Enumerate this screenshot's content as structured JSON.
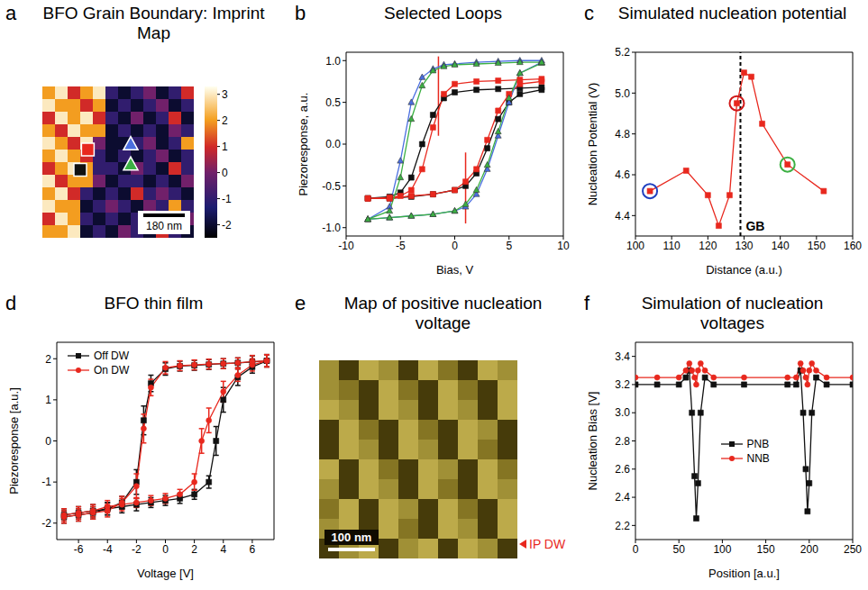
{
  "chart_data": [
    {
      "letter": "a",
      "type": "heatmap",
      "title": "BFO Grain Boundary: Imprint Map",
      "scale_bar": "180 nm",
      "colorbar": {
        "range": [
          -2.5,
          3.3
        ],
        "ticks": [
          -2,
          -1,
          0,
          1,
          2,
          3
        ]
      },
      "cells": [
        [
          2,
          3,
          1,
          2,
          3,
          -1,
          -2,
          -1,
          0,
          -2,
          -1,
          1
        ],
        [
          3,
          2,
          2,
          1,
          2,
          -2,
          -1,
          -2,
          -1,
          0,
          -2,
          -1
        ],
        [
          1,
          3,
          2,
          3,
          1,
          -1,
          -2,
          0,
          -2,
          -1,
          1,
          -2
        ],
        [
          2,
          1,
          3,
          2,
          2,
          -2,
          -1,
          -2,
          -1,
          -2,
          0,
          -1
        ],
        [
          3,
          2,
          1,
          3,
          0,
          -2,
          -2,
          -1,
          0,
          -2,
          -1,
          2
        ],
        [
          2,
          3,
          2,
          1,
          -1,
          -2,
          -1,
          -2,
          -1,
          0,
          -2,
          -1
        ],
        [
          1,
          2,
          3,
          2,
          -1,
          -1,
          -2,
          0,
          -1,
          -2,
          1,
          -1
        ],
        [
          3,
          1,
          2,
          2,
          0,
          -2,
          -1,
          -1,
          -2,
          -1,
          -2,
          0
        ],
        [
          2,
          3,
          1,
          -1,
          -2,
          -1,
          -2,
          1,
          -1,
          0,
          -1,
          -2
        ],
        [
          3,
          2,
          2,
          -2,
          -1,
          0,
          -1,
          -2,
          0,
          -1,
          2,
          -1
        ],
        [
          1,
          3,
          2,
          -1,
          -2,
          -1,
          -2,
          -1,
          -1,
          -2,
          -1,
          0
        ],
        [
          2,
          2,
          3,
          -2,
          -1,
          -2,
          0,
          -1,
          -2,
          1,
          -1,
          -2
        ]
      ],
      "markers": [
        {
          "marker": "square",
          "color": "#e8281e",
          "col": 3.6,
          "row": 5.0
        },
        {
          "marker": "square",
          "color": "#111111",
          "col": 3.0,
          "row": 6.6
        },
        {
          "marker": "triangle",
          "color": "#4a6ee0",
          "col": 7.0,
          "row": 4.6
        },
        {
          "marker": "triangle",
          "color": "#3cb043",
          "col": 7.0,
          "row": 6.2
        }
      ]
    },
    {
      "letter": "b",
      "type": "line",
      "title": "Selected Loops",
      "x_label": "Bias, V",
      "y_label": "Piezoresponse, a.u.",
      "xlim": [
        -10,
        10
      ],
      "xticks": [
        -10,
        -5,
        0,
        5,
        10
      ],
      "ylim": [
        -1.1,
        1.1
      ],
      "yticks": [
        {
          "value": -1,
          "label": "-1.0"
        },
        {
          "value": -0.5,
          "label": "-0.5"
        },
        {
          "value": 0,
          "label": "0.0"
        },
        0.5,
        {
          "value": 1,
          "label": "1.0"
        }
      ],
      "series": [
        {
          "color": "#111111",
          "marker": "square",
          "x": [
            -8,
            -6,
            -4,
            -2,
            0,
            1,
            2,
            3,
            4,
            5,
            6,
            8,
            8,
            6,
            4,
            2,
            0,
            -1,
            -2,
            -3,
            -4,
            -5,
            -6,
            -8
          ],
          "values": [
            -0.65,
            -0.65,
            -0.63,
            -0.6,
            -0.55,
            -0.5,
            -0.35,
            -0.05,
            0.3,
            0.5,
            0.6,
            0.65,
            0.68,
            0.67,
            0.66,
            0.65,
            0.62,
            0.55,
            0.35,
            0.0,
            -0.4,
            -0.58,
            -0.63,
            -0.65
          ]
        },
        {
          "color": "#e8281e",
          "marker": "square",
          "x": [
            -8,
            -6,
            -4,
            -2,
            0,
            1,
            2,
            3,
            4,
            5,
            6,
            8,
            8,
            6,
            4,
            2,
            0,
            -1,
            -2,
            -3,
            -4,
            -5,
            -6,
            -8
          ],
          "values": [
            -0.65,
            -0.65,
            -0.62,
            -0.6,
            -0.55,
            -0.45,
            -0.3,
            0.05,
            0.4,
            0.6,
            0.72,
            0.75,
            0.78,
            0.77,
            0.76,
            0.75,
            0.72,
            0.6,
            0.2,
            -0.3,
            -0.55,
            -0.62,
            -0.64,
            -0.65
          ]
        },
        {
          "color": "#4a6ee0",
          "marker": "triangle",
          "x": [
            -8,
            -6,
            -4,
            -2,
            0,
            1,
            2,
            3,
            4,
            5,
            6,
            8,
            8,
            6,
            4,
            2,
            0,
            -1,
            -2,
            -3,
            -4,
            -5,
            -6,
            -8
          ],
          "values": [
            -0.9,
            -0.88,
            -0.86,
            -0.84,
            -0.8,
            -0.75,
            -0.6,
            -0.3,
            0.1,
            0.5,
            0.85,
            0.98,
            1.0,
            1.0,
            0.99,
            0.98,
            0.96,
            0.95,
            0.9,
            0.8,
            0.5,
            -0.2,
            -0.75,
            -0.9
          ]
        },
        {
          "color": "#3cb043",
          "marker": "triangle",
          "x": [
            -8,
            -6,
            -4,
            -2,
            0,
            1,
            2,
            3,
            4,
            5,
            6,
            8,
            8,
            6,
            4,
            2,
            0,
            -1,
            -2,
            -3,
            -4,
            -5,
            -6,
            -8
          ],
          "values": [
            -0.9,
            -0.88,
            -0.86,
            -0.84,
            -0.8,
            -0.72,
            -0.55,
            -0.25,
            0.15,
            0.55,
            0.85,
            0.97,
            0.98,
            0.98,
            0.97,
            0.96,
            0.95,
            0.93,
            0.88,
            0.7,
            0.3,
            -0.4,
            -0.8,
            -0.9
          ]
        }
      ],
      "reference_lines": [
        {
          "x": -1.5,
          "y": [
            0.1,
            1.05
          ],
          "color": "#e8281e"
        },
        {
          "x": 1,
          "y": [
            -0.95,
            -0.1
          ],
          "color": "#e8281e"
        }
      ]
    },
    {
      "letter": "c",
      "type": "line",
      "title": "Simulated nucleation potential",
      "x_label": "Distance (a.u.)",
      "y_label": "Nucleation Potential (V)",
      "xlim": [
        100,
        160
      ],
      "xticks": [
        100,
        110,
        120,
        130,
        140,
        150,
        160
      ],
      "ylim": [
        4.3,
        5.2
      ],
      "yticks": [
        4.4,
        4.6,
        4.8,
        {
          "value": 5,
          "label": "5.0"
        },
        5.2
      ],
      "x": [
        104,
        114,
        120,
        123,
        126,
        128,
        130,
        132,
        135,
        142,
        152
      ],
      "values": [
        4.52,
        4.62,
        4.5,
        4.35,
        4.5,
        4.95,
        5.1,
        5.08,
        4.85,
        4.65,
        4.52
      ],
      "color": "#e8281e",
      "marker": "square",
      "annotations": [
        {
          "x": 129,
          "label": "GB",
          "line_style": "dashed"
        }
      ],
      "highlights": [
        {
          "x": 104,
          "y": 4.52,
          "color": "#2040c0"
        },
        {
          "x": 128,
          "y": 4.95,
          "color": "#d01818"
        },
        {
          "x": 142,
          "y": 4.65,
          "color": "#3cb043"
        }
      ]
    },
    {
      "letter": "d",
      "type": "line",
      "title": "BFO thin film",
      "x_label": "Voltage [V]",
      "y_label": "Piezoresponse [a.u.]",
      "xlim": [
        -7.5,
        7.5
      ],
      "xticks": [
        -6,
        -4,
        -2,
        0,
        2,
        4,
        6
      ],
      "ylim": [
        -2.4,
        2.4
      ],
      "yticks": [
        -2,
        -1,
        0,
        1,
        2
      ],
      "legend": "upper left",
      "series": [
        {
          "name": "Off DW",
          "color": "#111111",
          "marker": "square",
          "x": [
            -7,
            -6,
            -5,
            -4,
            -3,
            -2,
            -1,
            0,
            1,
            2,
            3,
            3.5,
            4,
            5,
            6,
            7,
            7,
            6,
            5,
            4,
            3,
            2,
            1,
            0,
            -1,
            -1.5,
            -2,
            -3,
            -4,
            -5,
            -6,
            -7
          ],
          "values": [
            -1.8,
            -1.75,
            -1.7,
            -1.65,
            -1.6,
            -1.55,
            -1.5,
            -1.45,
            -1.4,
            -1.3,
            -1.0,
            0.0,
            1.0,
            1.55,
            1.8,
            1.95,
            1.95,
            1.92,
            1.9,
            1.88,
            1.86,
            1.84,
            1.82,
            1.75,
            1.4,
            0.5,
            -1.0,
            -1.5,
            -1.65,
            -1.75,
            -1.8,
            -1.85
          ],
          "errors": [
            0.15,
            0.15,
            0.15,
            0.15,
            0.15,
            0.15,
            0.12,
            0.12,
            0.12,
            0.12,
            0.15,
            0.35,
            0.3,
            0.2,
            0.15,
            0.15,
            0.15,
            0.15,
            0.12,
            0.12,
            0.12,
            0.12,
            0.12,
            0.15,
            0.2,
            0.35,
            0.3,
            0.15,
            0.15,
            0.15,
            0.15,
            0.15
          ]
        },
        {
          "name": "On DW",
          "color": "#e8281e",
          "marker": "circle",
          "x": [
            -7,
            -6,
            -5,
            -4,
            -3,
            -2,
            -1,
            0,
            1,
            2,
            2.5,
            3,
            4,
            5,
            6,
            7,
            7,
            6,
            5,
            4,
            3,
            2,
            1,
            0,
            -1,
            -1.5,
            -2,
            -3,
            -4,
            -5,
            -6,
            -7
          ],
          "values": [
            -1.8,
            -1.75,
            -1.7,
            -1.6,
            -1.55,
            -1.5,
            -1.45,
            -1.4,
            -1.3,
            -1.0,
            0.0,
            0.5,
            1.2,
            1.6,
            1.85,
            1.95,
            1.95,
            1.93,
            1.9,
            1.88,
            1.87,
            1.85,
            1.83,
            1.78,
            1.3,
            0.3,
            -1.1,
            -1.5,
            -1.7,
            -1.75,
            -1.8,
            -1.85
          ],
          "errors": [
            0.15,
            0.15,
            0.15,
            0.15,
            0.15,
            0.12,
            0.12,
            0.12,
            0.12,
            0.2,
            0.3,
            0.3,
            0.25,
            0.15,
            0.15,
            0.15,
            0.15,
            0.15,
            0.12,
            0.12,
            0.12,
            0.12,
            0.12,
            0.15,
            0.2,
            0.35,
            0.3,
            0.15,
            0.15,
            0.15,
            0.15,
            0.15
          ]
        }
      ]
    },
    {
      "letter": "e",
      "type": "heatmap",
      "title": "Map of positive nucleation voltage",
      "scale_bar": "100 nm",
      "annotation": "IP DW",
      "cells": [
        [
          0.7,
          0.3,
          0.8,
          0.7,
          0.3,
          0.8,
          0.6,
          0.3,
          0.8,
          0.7
        ],
        [
          0.7,
          0.6,
          0.3,
          0.8,
          0.6,
          0.3,
          0.8,
          0.6,
          0.3,
          0.8
        ],
        [
          0.8,
          0.7,
          0.3,
          0.8,
          0.7,
          0.3,
          0.8,
          0.7,
          0.3,
          0.8
        ],
        [
          0.3,
          0.8,
          0.6,
          0.3,
          0.8,
          0.6,
          0.3,
          0.8,
          0.7,
          0.3
        ],
        [
          0.3,
          0.8,
          0.7,
          0.3,
          0.8,
          0.7,
          0.3,
          0.8,
          0.6,
          0.3
        ],
        [
          0.8,
          0.3,
          0.8,
          0.6,
          0.3,
          0.8,
          0.7,
          0.3,
          0.8,
          0.6
        ],
        [
          0.7,
          0.3,
          0.8,
          0.7,
          0.3,
          0.8,
          0.6,
          0.3,
          0.8,
          0.7
        ],
        [
          0.6,
          0.8,
          0.3,
          0.8,
          0.7,
          0.3,
          0.8,
          0.6,
          0.3,
          0.8
        ],
        [
          0.7,
          0.8,
          0.3,
          0.8,
          0.6,
          0.3,
          0.8,
          0.7,
          0.3,
          0.8
        ],
        [
          0.3,
          0.7,
          0.8,
          0.3,
          0.7,
          0.8,
          0.3,
          0.8,
          0.7,
          0.3
        ]
      ]
    },
    {
      "letter": "f",
      "type": "line",
      "title": "Simulation of nucleation voltages",
      "x_label": "Position [a.u.]",
      "y_label": "Nucleation Bias [V]",
      "xlim": [
        0,
        250
      ],
      "xticks": [
        0,
        50,
        100,
        150,
        200,
        250
      ],
      "ylim": [
        2.1,
        3.5
      ],
      "yticks": [
        2.2,
        2.4,
        2.6,
        2.8,
        {
          "value": 3,
          "label": "3.0"
        },
        3.2,
        3.4
      ],
      "legend": "center",
      "series": [
        {
          "name": "PNB",
          "color": "#111111",
          "marker": "square",
          "x": [
            0,
            25,
            50,
            58,
            62,
            65,
            68,
            70,
            72,
            75,
            80,
            90,
            125,
            175,
            185,
            190,
            193,
            196,
            198,
            200,
            203,
            208,
            220,
            250
          ],
          "values": [
            3.2,
            3.2,
            3.2,
            3.25,
            3.3,
            3.0,
            2.55,
            2.25,
            2.5,
            3.0,
            3.25,
            3.2,
            3.2,
            3.2,
            3.2,
            3.3,
            3.0,
            2.6,
            2.3,
            2.5,
            3.0,
            3.25,
            3.2,
            3.2
          ]
        },
        {
          "name": "NNB",
          "color": "#e8281e",
          "marker": "circle",
          "x": [
            0,
            25,
            50,
            58,
            62,
            65,
            68,
            70,
            72,
            75,
            80,
            90,
            125,
            175,
            185,
            190,
            193,
            196,
            198,
            200,
            203,
            208,
            220,
            250
          ],
          "values": [
            3.25,
            3.25,
            3.25,
            3.3,
            3.35,
            3.3,
            3.25,
            3.2,
            3.3,
            3.35,
            3.3,
            3.25,
            3.25,
            3.25,
            3.25,
            3.35,
            3.3,
            3.25,
            3.2,
            3.3,
            3.35,
            3.3,
            3.25,
            3.25
          ]
        }
      ]
    }
  ]
}
